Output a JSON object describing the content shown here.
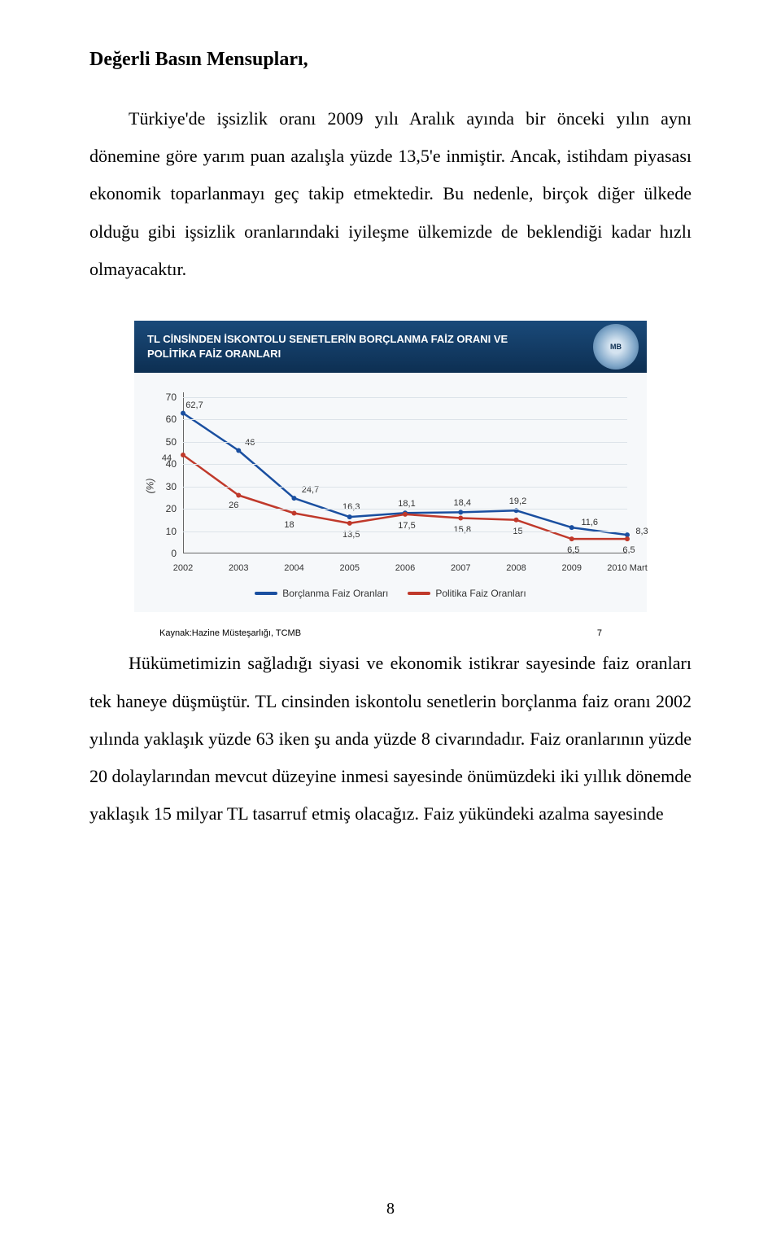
{
  "heading": "Değerli Basın Mensupları,",
  "para1": "Türkiye'de işsizlik oranı 2009 yılı Aralık ayında bir önceki yılın aynı dönemine göre yarım puan azalışla yüzde 13,5'e inmiştir. Ancak, istihdam piyasası ekonomik toparlanmayı geç takip etmektedir. Bu nedenle, birçok diğer ülkede olduğu gibi işsizlik oranlarındaki iyileşme ülkemizde de beklendiği kadar hızlı olmayacaktır.",
  "para2": "Hükümetimizin sağladığı siyasi ve ekonomik istikrar sayesinde faiz oranları tek haneye düşmüştür. TL cinsinden iskontolu senetlerin borçlanma faiz oranı 2002 yılında yaklaşık yüzde 63 iken şu anda yüzde 8 civarındadır. Faiz oranlarının yüzde 20 dolaylarından mevcut düzeyine inmesi sayesinde önümüzdeki iki yıllık dönemde yaklaşık 15 milyar TL tasarruf etmiş olacağız. Faiz yükündeki azalma sayesinde",
  "page_number": "8",
  "chart": {
    "title_line1": "TL CİNSİNDEN İSKONTOLU SENETLERİN BORÇLANMA FAİZ ORANI VE",
    "title_line2": "POLİTİKA FAİZ ORANLARI",
    "badge_text": "MB",
    "source": "Kaynak:Hazine Müsteşarlığı, TCMB",
    "slide_number": "7",
    "y_label": "(%)",
    "y_ticks": [
      0,
      10,
      20,
      30,
      40,
      50,
      60,
      70
    ],
    "x_labels": [
      "2002",
      "2003",
      "2004",
      "2005",
      "2006",
      "2007",
      "2008",
      "2009",
      "2010 Mart"
    ],
    "ylim": [
      0,
      72
    ],
    "series": [
      {
        "name": "Borçlanma Faiz Oranları",
        "color": "#1a4fa0",
        "values": [
          62.7,
          46.0,
          24.7,
          16.3,
          18.1,
          18.4,
          19.2,
          11.6,
          8.3
        ],
        "label_offsets": [
          [
            14,
            -10
          ],
          [
            14,
            -10
          ],
          [
            20,
            -10
          ],
          [
            2,
            -12
          ],
          [
            2,
            -12
          ],
          [
            2,
            -12
          ],
          [
            2,
            -12
          ],
          [
            22,
            -6
          ],
          [
            18,
            -4
          ]
        ]
      },
      {
        "name": "Politika Faiz Oranları",
        "color": "#c0392b",
        "values": [
          44.0,
          26.0,
          18.0,
          13.5,
          17.5,
          15.8,
          15.0,
          6.5,
          6.5
        ],
        "label_offsets": [
          [
            -20,
            4
          ],
          [
            -6,
            12
          ],
          [
            -6,
            14
          ],
          [
            2,
            14
          ],
          [
            2,
            14
          ],
          [
            2,
            14
          ],
          [
            2,
            14
          ],
          [
            2,
            14
          ],
          [
            2,
            14
          ]
        ]
      }
    ],
    "legend": [
      {
        "label": "Borçlanma Faiz Oranları",
        "color": "#1a4fa0"
      },
      {
        "label": "Politika Faiz Oranları",
        "color": "#c0392b"
      }
    ],
    "background_color": "#f6f8fa",
    "grid_color": "#dce3e9",
    "header_bg": "#0d2f52",
    "line_width": 2.5
  }
}
